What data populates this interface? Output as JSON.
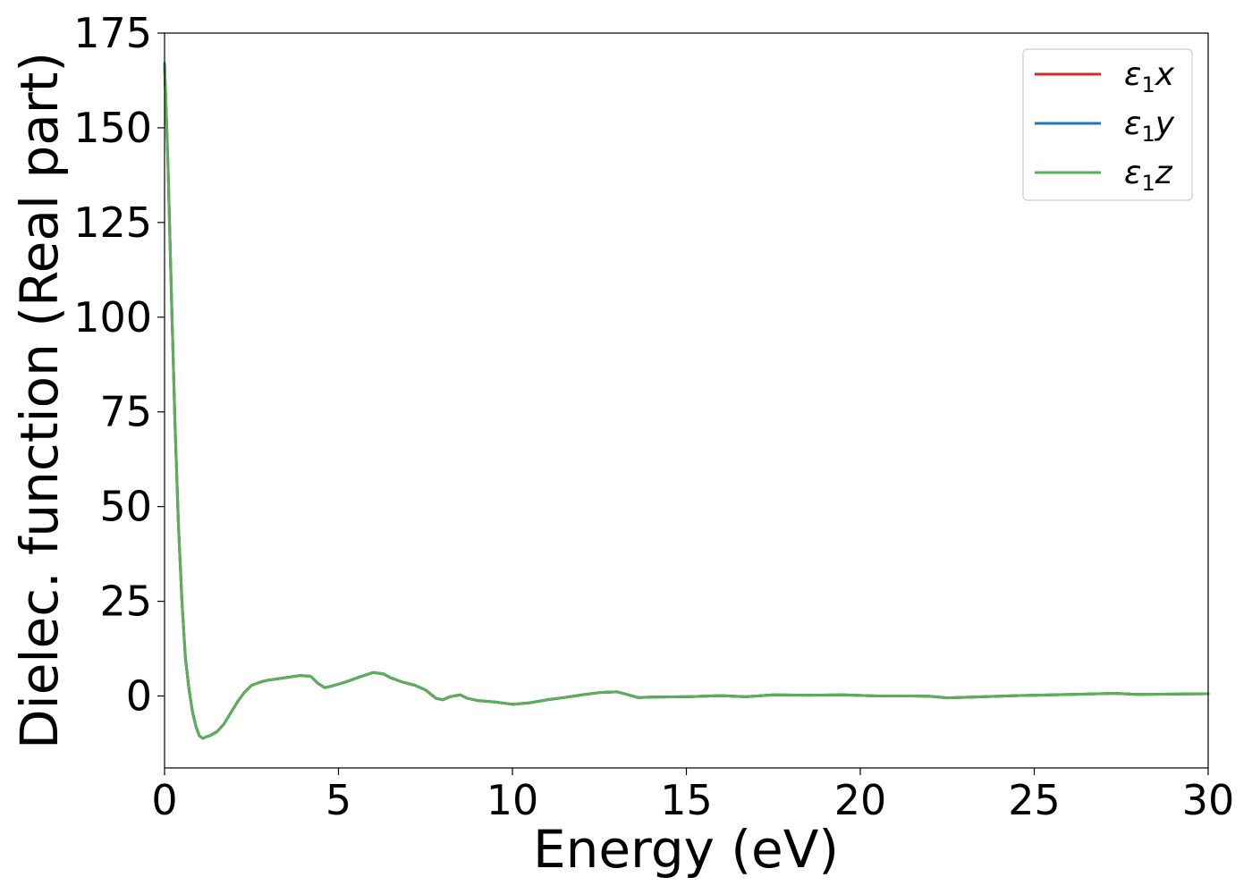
{
  "chart_data": {
    "type": "line",
    "title": "",
    "xlabel": "Energy (eV)",
    "ylabel": "Dielec. function (Real part)",
    "xlim": [
      0,
      30
    ],
    "ylim": [
      -19,
      175
    ],
    "xticks": [
      0,
      5,
      10,
      15,
      20,
      25,
      30
    ],
    "yticks": [
      0,
      25,
      50,
      75,
      100,
      125,
      150,
      175
    ],
    "grid": false,
    "legend_position": "top-right",
    "series": [
      {
        "name": "ε1x",
        "legend": {
          "base": "ε",
          "sub": "1",
          "var": "x"
        },
        "color": "#d62728",
        "x": [
          0,
          0.1,
          0.2,
          0.3,
          0.4,
          0.5,
          0.6,
          0.7,
          0.8,
          0.9,
          1.0,
          1.1,
          1.2,
          1.3,
          1.5,
          1.7,
          1.9,
          2.1,
          2.3,
          2.5,
          2.8,
          3.0,
          3.3,
          3.6,
          3.9,
          4.2,
          4.4,
          4.6,
          4.8,
          5.0,
          5.3,
          5.6,
          6.0,
          6.3,
          6.5,
          6.8,
          7.2,
          7.5,
          7.8,
          8.0,
          8.2,
          8.5,
          8.7,
          9.0,
          9.5,
          10.0,
          10.5,
          11.0,
          11.5,
          12.0,
          12.5,
          13.0,
          13.3,
          13.6,
          14.0,
          15.0,
          16.0,
          16.7,
          17.5,
          18.5,
          19.5,
          20.5,
          21.5,
          22.0,
          22.5,
          23.5,
          24.5,
          25.5,
          26.5,
          27.3,
          28.0,
          29.0,
          30.0
        ],
        "y": [
          167,
          140,
          105,
          72,
          45,
          25,
          10,
          2,
          -4,
          -8,
          -10.5,
          -11.2,
          -10.8,
          -10.5,
          -9.5,
          -7.5,
          -4.5,
          -1.5,
          1,
          2.8,
          3.8,
          4.2,
          4.6,
          5.0,
          5.4,
          5.2,
          3.4,
          2.2,
          2.6,
          3.1,
          4.0,
          5.0,
          6.2,
          5.8,
          4.8,
          3.8,
          2.8,
          1.6,
          -0.6,
          -1.0,
          -0.2,
          0.3,
          -0.6,
          -1.2,
          -1.6,
          -2.2,
          -1.8,
          -1.0,
          -0.4,
          0.3,
          0.9,
          1.1,
          0.4,
          -0.4,
          -0.3,
          -0.2,
          0.1,
          -0.2,
          0.3,
          0.2,
          0.3,
          0.0,
          0.0,
          -0.1,
          -0.5,
          -0.2,
          0.1,
          0.3,
          0.5,
          0.7,
          0.4,
          0.5,
          0.6
        ]
      },
      {
        "name": "ε1y",
        "legend": {
          "base": "ε",
          "sub": "1",
          "var": "y"
        },
        "color": "#1f77b4",
        "x": [
          0,
          0.1,
          0.2,
          0.3,
          0.4,
          0.5,
          0.6,
          0.7,
          0.8,
          0.9,
          1.0,
          1.1,
          1.2,
          1.3,
          1.5,
          1.7,
          1.9,
          2.1,
          2.3,
          2.5,
          2.8,
          3.0,
          3.3,
          3.6,
          3.9,
          4.2,
          4.4,
          4.6,
          4.8,
          5.0,
          5.3,
          5.6,
          6.0,
          6.3,
          6.5,
          6.8,
          7.2,
          7.5,
          7.8,
          8.0,
          8.2,
          8.5,
          8.7,
          9.0,
          9.5,
          10.0,
          10.5,
          11.0,
          11.5,
          12.0,
          12.5,
          13.0,
          13.3,
          13.6,
          14.0,
          15.0,
          16.0,
          16.7,
          17.5,
          18.5,
          19.5,
          20.5,
          21.5,
          22.0,
          22.5,
          23.5,
          24.5,
          25.5,
          26.5,
          27.3,
          28.0,
          29.0,
          30.0
        ],
        "y": [
          167,
          140,
          105,
          72,
          45,
          25,
          10,
          2,
          -4,
          -8,
          -10.5,
          -11.2,
          -10.8,
          -10.5,
          -9.5,
          -7.5,
          -4.5,
          -1.5,
          1,
          2.8,
          3.8,
          4.2,
          4.6,
          5.0,
          5.4,
          5.2,
          3.4,
          2.2,
          2.6,
          3.1,
          4.0,
          5.0,
          6.2,
          5.8,
          4.8,
          3.8,
          2.8,
          1.6,
          -0.6,
          -1.0,
          -0.2,
          0.3,
          -0.6,
          -1.2,
          -1.6,
          -2.2,
          -1.8,
          -1.0,
          -0.4,
          0.3,
          0.9,
          1.1,
          0.4,
          -0.4,
          -0.3,
          -0.2,
          0.1,
          -0.2,
          0.3,
          0.2,
          0.3,
          0.0,
          0.0,
          -0.1,
          -0.5,
          -0.2,
          0.1,
          0.3,
          0.5,
          0.7,
          0.4,
          0.5,
          0.6
        ]
      },
      {
        "name": "ε1z",
        "legend": {
          "base": "ε",
          "sub": "1",
          "var": "z"
        },
        "color": "#5aaf58",
        "x": [
          0,
          0.1,
          0.2,
          0.3,
          0.4,
          0.5,
          0.6,
          0.7,
          0.8,
          0.9,
          1.0,
          1.1,
          1.2,
          1.3,
          1.5,
          1.7,
          1.9,
          2.1,
          2.3,
          2.5,
          2.8,
          3.0,
          3.3,
          3.6,
          3.9,
          4.2,
          4.4,
          4.6,
          4.8,
          5.0,
          5.3,
          5.6,
          6.0,
          6.3,
          6.5,
          6.8,
          7.2,
          7.5,
          7.8,
          8.0,
          8.2,
          8.5,
          8.7,
          9.0,
          9.5,
          10.0,
          10.5,
          11.0,
          11.5,
          12.0,
          12.5,
          13.0,
          13.3,
          13.6,
          14.0,
          15.0,
          16.0,
          16.7,
          17.5,
          18.5,
          19.5,
          20.5,
          21.5,
          22.0,
          22.5,
          23.5,
          24.5,
          25.5,
          26.5,
          27.3,
          28.0,
          29.0,
          30.0
        ],
        "y": [
          167,
          140,
          105,
          72,
          45,
          25,
          10,
          2,
          -4,
          -8,
          -10.5,
          -11.2,
          -10.8,
          -10.5,
          -9.5,
          -7.5,
          -4.5,
          -1.5,
          1,
          2.8,
          3.8,
          4.2,
          4.6,
          5.0,
          5.4,
          5.2,
          3.4,
          2.2,
          2.6,
          3.1,
          4.0,
          5.0,
          6.2,
          5.8,
          4.8,
          3.8,
          2.8,
          1.6,
          -0.6,
          -1.0,
          -0.2,
          0.3,
          -0.6,
          -1.2,
          -1.6,
          -2.2,
          -1.8,
          -1.0,
          -0.4,
          0.3,
          0.9,
          1.1,
          0.4,
          -0.4,
          -0.3,
          -0.2,
          0.1,
          -0.2,
          0.3,
          0.2,
          0.3,
          0.0,
          0.0,
          -0.1,
          -0.5,
          -0.2,
          0.1,
          0.3,
          0.5,
          0.7,
          0.4,
          0.5,
          0.6
        ]
      }
    ]
  }
}
